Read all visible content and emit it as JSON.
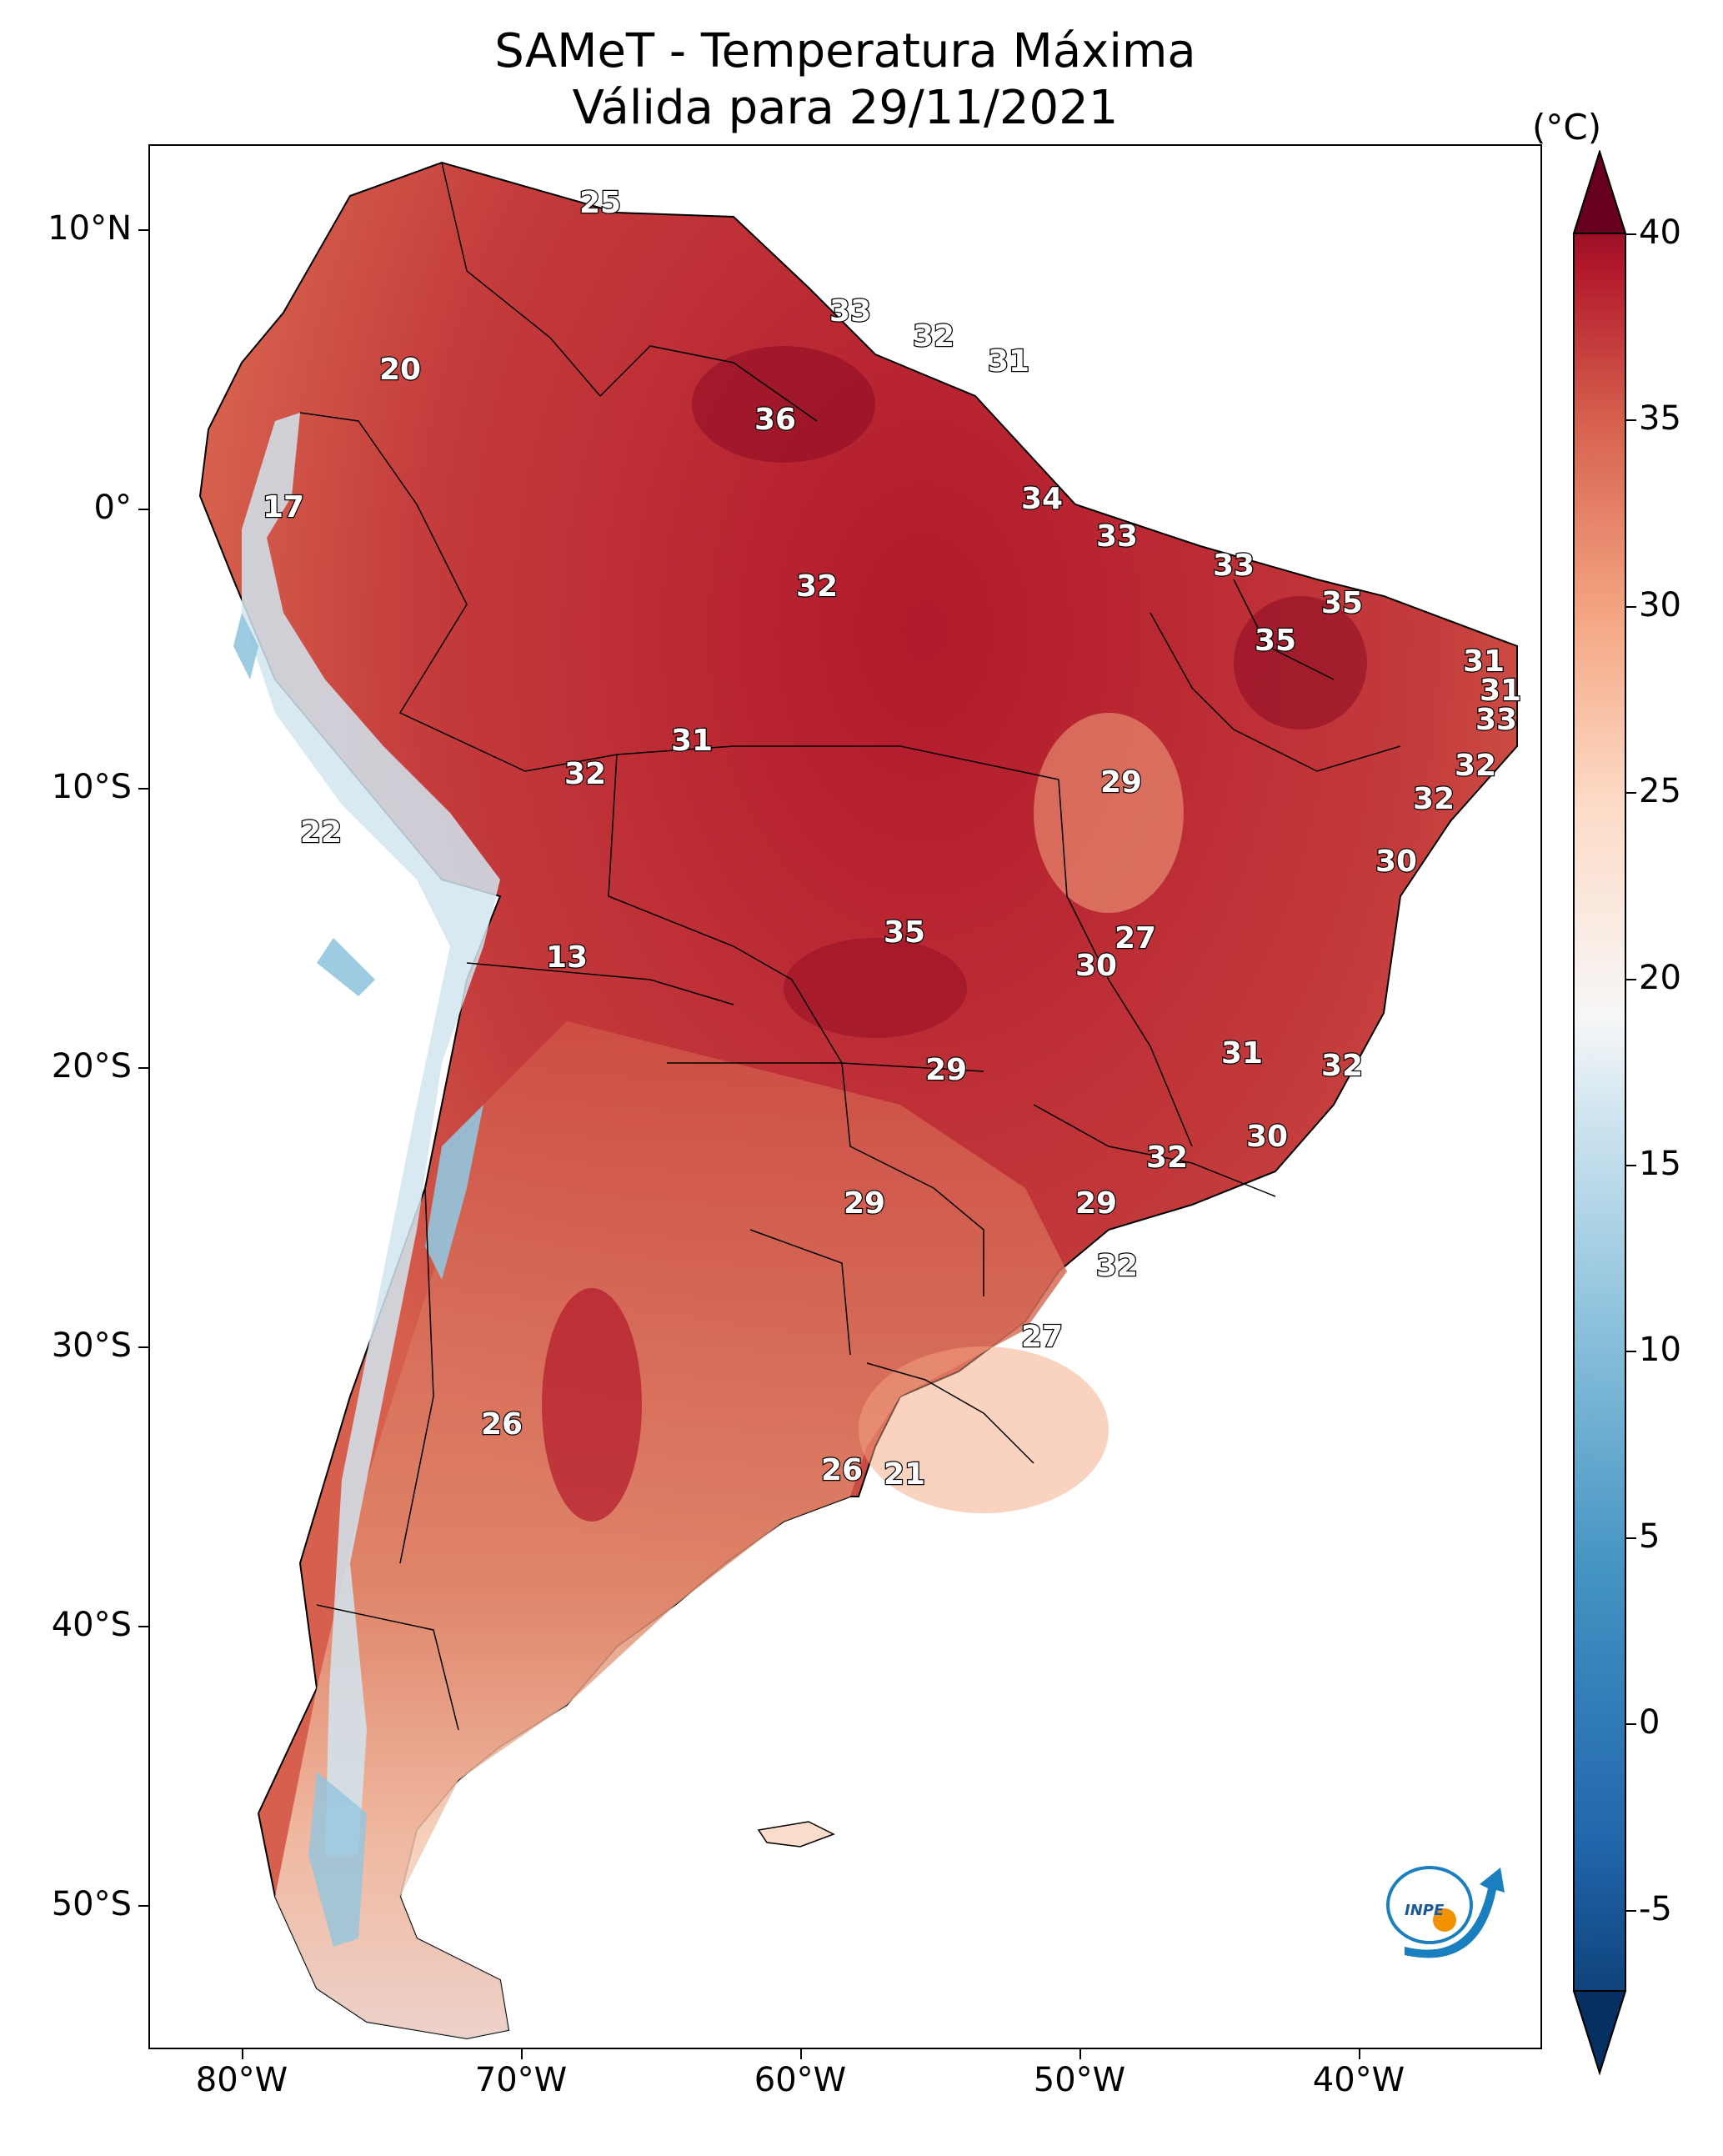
{
  "title": {
    "line1": "SAMeT - Temperatura Máxima",
    "line2": "Válida para 29/11/2021"
  },
  "axes": {
    "lat_labels": [
      "10°N",
      "0°",
      "10°S",
      "20°S",
      "30°S",
      "40°S",
      "50°S"
    ],
    "lon_labels": [
      "80°W",
      "70°W",
      "60°W",
      "50°W",
      "40°W"
    ]
  },
  "colorbar": {
    "unit": "(°C)",
    "ticks": [
      "40",
      "35",
      "30",
      "25",
      "20",
      "15",
      "10",
      "5",
      "0",
      "-5"
    ],
    "range": [
      -7,
      40
    ],
    "colors": {
      "hot": "#67001f",
      "warm": "#d6604d",
      "neutral": "#f7f7f7",
      "cool": "#4393c3",
      "cold": "#053061"
    }
  },
  "temperature_labels": [
    "25",
    "33",
    "32",
    "31",
    "20",
    "36",
    "17",
    "34",
    "33",
    "33",
    "32",
    "35",
    "35",
    "31",
    "31",
    "33",
    "31",
    "32",
    "29",
    "32",
    "22",
    "32",
    "30",
    "13",
    "35",
    "27",
    "30",
    "31",
    "32",
    "29",
    "30",
    "32",
    "29",
    "29",
    "32",
    "27",
    "26",
    "26",
    "21"
  ],
  "logo": {
    "text": "INPE"
  }
}
